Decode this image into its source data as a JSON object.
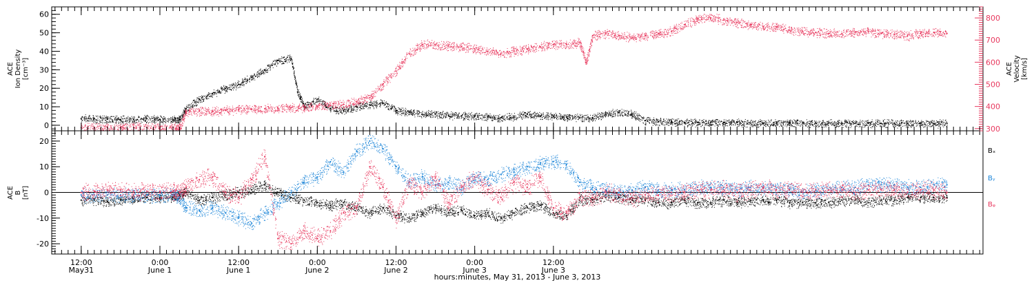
{
  "chart_data": [
    {
      "type": "scatter",
      "panel": "plasma",
      "y_title_lines": [
        "ACE",
        "Ion Density",
        "[cm⁻³]"
      ],
      "y2_title_lines": [
        "ACE",
        "Velocity",
        "[km/s]"
      ],
      "y_ticks": [
        0,
        10,
        20,
        30,
        40,
        50,
        60
      ],
      "ylim": [
        -3,
        64
      ],
      "y2_ticks": [
        300,
        400,
        500,
        600,
        700,
        800
      ],
      "y2lim": [
        290,
        850
      ],
      "series": [
        {
          "color": "#000000",
          "x": [
            0,
            2,
            4,
            6,
            8,
            10,
            12,
            14,
            15,
            16,
            18,
            20,
            22,
            24,
            26,
            28,
            30,
            32,
            33,
            34,
            36,
            38,
            40,
            42,
            44,
            46,
            48,
            50,
            52,
            54,
            56,
            58,
            60,
            62,
            64,
            66,
            68,
            70,
            72,
            74,
            76,
            78,
            80,
            82,
            84,
            86,
            88,
            90,
            92,
            94,
            96,
            98,
            100,
            102,
            104,
            106,
            108,
            110,
            112,
            114,
            116,
            118,
            120,
            122,
            124,
            126,
            128,
            130,
            132
          ],
          "y": [
            3.5,
            3.5,
            3.2,
            3.0,
            3.2,
            3.5,
            3.2,
            3.0,
            3.0,
            9,
            14,
            17,
            20,
            22,
            26,
            30,
            35,
            36,
            18,
            10,
            14,
            9,
            8,
            10,
            11,
            12,
            8,
            7,
            6,
            6,
            5.5,
            5,
            5,
            4.5,
            4,
            4.5,
            6,
            5,
            5,
            4.5,
            4,
            4,
            6,
            7,
            6,
            2.5,
            2,
            1.8,
            1.5,
            1.5,
            1.5,
            1.5,
            1.5,
            1.2,
            1.2,
            1.2,
            1.2,
            1.2,
            1.2,
            1.2,
            1.2,
            1.0,
            1.0,
            1.0,
            1.0,
            1.0,
            1.0,
            1.0,
            1.0
          ]
        },
        {
          "color": "#e8385e",
          "axis": "right",
          "x": [
            0,
            2,
            4,
            6,
            8,
            10,
            12,
            14,
            15,
            16,
            18,
            20,
            22,
            24,
            26,
            28,
            30,
            32,
            34,
            36,
            38,
            40,
            42,
            44,
            46,
            48,
            50,
            52,
            54,
            56,
            58,
            60,
            62,
            64,
            66,
            68,
            70,
            72,
            74,
            76,
            77,
            78,
            80,
            82,
            84,
            86,
            88,
            90,
            92,
            94,
            96,
            98,
            100,
            102,
            104,
            106,
            108,
            110,
            112,
            114,
            116,
            118,
            120,
            122,
            124,
            126,
            128,
            130,
            132
          ],
          "y": [
            305,
            305,
            305,
            305,
            305,
            305,
            305,
            305,
            305,
            375,
            380,
            380,
            382,
            385,
            388,
            390,
            392,
            395,
            395,
            400,
            405,
            410,
            420,
            440,
            500,
            560,
            640,
            680,
            680,
            675,
            670,
            660,
            650,
            640,
            650,
            660,
            670,
            680,
            680,
            690,
            600,
            720,
            730,
            720,
            710,
            720,
            730,
            740,
            770,
            795,
            800,
            790,
            780,
            770,
            760,
            760,
            745,
            740,
            735,
            730,
            730,
            735,
            740,
            730,
            725,
            720,
            730,
            735,
            730
          ]
        }
      ]
    },
    {
      "type": "scatter",
      "panel": "magnetic-field",
      "y_title_lines": [
        "ACE",
        "B",
        "[nT]"
      ],
      "y_ticks": [
        -20,
        -10,
        0,
        10,
        20
      ],
      "ylim": [
        -24,
        24
      ],
      "zero_line": true,
      "legend": [
        "Bₓ",
        "Bᵧ",
        "Bᵩ"
      ],
      "series": [
        {
          "color": "#000000",
          "x": [
            0,
            2,
            4,
            6,
            8,
            10,
            12,
            14,
            15,
            16,
            18,
            20,
            22,
            24,
            26,
            28,
            30,
            32,
            34,
            36,
            38,
            40,
            42,
            44,
            46,
            48,
            50,
            52,
            54,
            56,
            58,
            60,
            62,
            64,
            66,
            68,
            70,
            72,
            74,
            76,
            78,
            80,
            82,
            84,
            86,
            88,
            90,
            92,
            94,
            96,
            98,
            100,
            102,
            104,
            106,
            108,
            110,
            112,
            114,
            116,
            118,
            120,
            122,
            124,
            126,
            128,
            130,
            132
          ],
          "y": [
            -3,
            -3,
            -3.5,
            -3,
            -2.5,
            -2,
            -2,
            -2,
            -1,
            0,
            -3,
            -2,
            -1,
            0,
            1,
            3,
            0,
            -2,
            -3,
            -4,
            -5,
            -4,
            -6,
            -8,
            -6,
            -9,
            -10,
            -8,
            -6,
            -8,
            -7,
            -9,
            -8,
            -10,
            -8,
            -6,
            -5,
            -8,
            -9,
            -3,
            -3,
            -1,
            -2,
            -3,
            -3,
            -4,
            -4,
            -3,
            -4,
            -4,
            -3,
            -4,
            -3,
            -3,
            -3,
            -4,
            -4,
            -4,
            -4,
            -3,
            -3,
            -4,
            -3,
            -3,
            -2,
            -2,
            -2,
            -2
          ]
        },
        {
          "color": "#1a84d8",
          "x": [
            0,
            2,
            4,
            6,
            8,
            10,
            12,
            14,
            15,
            16,
            18,
            20,
            22,
            24,
            26,
            28,
            30,
            32,
            34,
            36,
            38,
            40,
            42,
            44,
            46,
            48,
            50,
            52,
            54,
            56,
            58,
            60,
            62,
            64,
            66,
            68,
            70,
            72,
            74,
            76,
            78,
            80,
            82,
            84,
            86,
            88,
            90,
            92,
            94,
            96,
            98,
            100,
            102,
            104,
            106,
            108,
            110,
            112,
            114,
            116,
            118,
            120,
            122,
            124,
            126,
            128,
            130,
            132
          ],
          "y": [
            -1,
            -1,
            -1,
            -1,
            -1,
            -1,
            -1,
            -1,
            -2,
            -6,
            -7,
            -6,
            -8,
            -10,
            -12,
            -8,
            -4,
            0,
            4,
            6,
            12,
            8,
            16,
            20,
            17,
            10,
            4,
            6,
            3,
            4,
            2,
            6,
            5,
            7,
            8,
            10,
            11,
            12,
            11,
            4,
            2,
            1,
            0,
            1,
            2,
            1,
            1,
            1,
            2,
            2,
            2,
            1,
            2,
            2,
            1,
            1,
            0,
            1,
            1,
            2,
            2,
            3,
            3,
            3,
            2,
            2,
            3,
            3
          ]
        },
        {
          "color": "#e8385e",
          "x": [
            0,
            2,
            4,
            6,
            8,
            10,
            12,
            14,
            15,
            16,
            18,
            20,
            22,
            24,
            26,
            28,
            30,
            32,
            34,
            36,
            38,
            40,
            42,
            44,
            46,
            48,
            50,
            52,
            54,
            56,
            58,
            60,
            62,
            64,
            66,
            68,
            70,
            72,
            74,
            76,
            78,
            80,
            82,
            84,
            86,
            88,
            90,
            92,
            94,
            96,
            98,
            100,
            102,
            104,
            106,
            108,
            110,
            112,
            114,
            116,
            118,
            120,
            122,
            124,
            126,
            128,
            130,
            132
          ],
          "y": [
            0,
            0.5,
            1,
            1,
            0.5,
            0.5,
            0.5,
            0.5,
            0,
            2,
            5,
            6,
            0,
            -2,
            5,
            14,
            -18,
            -20,
            -15,
            -18,
            -15,
            -8,
            -6,
            10,
            2,
            -10,
            4,
            0,
            6,
            -4,
            2,
            6,
            1,
            -2,
            4,
            2,
            6,
            -6,
            -8,
            -2,
            -2,
            0,
            -1,
            -2,
            -1,
            -1,
            0,
            0,
            1,
            1,
            1,
            0,
            1,
            2,
            1,
            1,
            0,
            1,
            1,
            1,
            0,
            1,
            1,
            1,
            0,
            1,
            1,
            0
          ]
        }
      ]
    }
  ],
  "x_axis": {
    "xlim": [
      -4.5,
      137.5
    ],
    "major_ticks": [
      {
        "x": 0,
        "time": "12:00",
        "date": "May31"
      },
      {
        "x": 12,
        "time": "0:00",
        "date": "June 1"
      },
      {
        "x": 24,
        "time": "12:00",
        "date": "June 1"
      },
      {
        "x": 36,
        "time": "0:00",
        "date": "June 2"
      },
      {
        "x": 48,
        "time": "12:00",
        "date": "June 2"
      },
      {
        "x": 60,
        "time": "0:00",
        "date": "June 3"
      },
      {
        "x": 72,
        "time": "12:00",
        "date": "June 3"
      }
    ],
    "title": "hours:minutes, May 31, 2013 - June  3, 2013"
  }
}
